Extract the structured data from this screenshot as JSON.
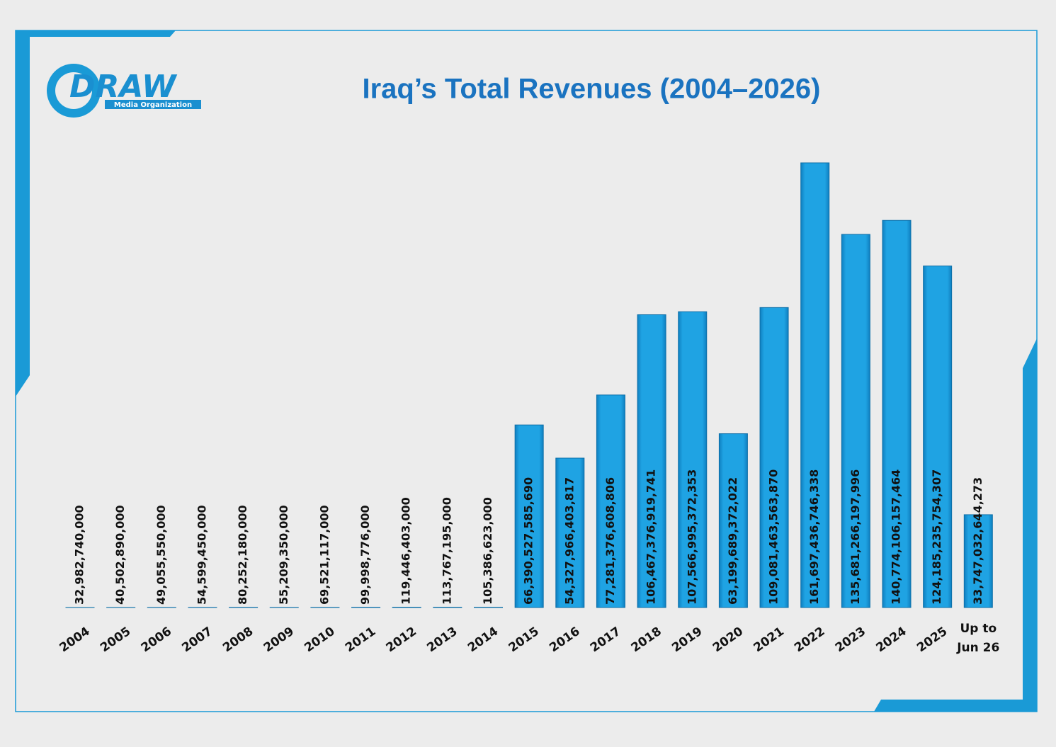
{
  "logo": {
    "name": "DRAW",
    "tagline": "Media Organization"
  },
  "chart_data": {
    "type": "bar",
    "title": "Iraq’s Total Revenues (2004–2026)",
    "categories": [
      "2004",
      "2005",
      "2006",
      "2007",
      "2008",
      "2009",
      "2010",
      "2011",
      "2012",
      "2013",
      "2014",
      "2015",
      "2016",
      "2017",
      "2018",
      "2019",
      "2020",
      "2021",
      "2022",
      "2023",
      "2024",
      "2025",
      "Up to Jun 26"
    ],
    "values": [
      32982740000,
      40502890000,
      49055550000,
      54599450000,
      80252180000,
      55209350000,
      69521117000,
      99998776000,
      119446403000,
      113767195000,
      105386623000,
      66390527585690,
      54327966403817,
      77281376608806,
      106467376919741,
      107566995372353,
      63199689372022,
      109081463563870,
      161697436746338,
      135681266197996,
      140774106157464,
      124185235754307,
      33747032644273
    ],
    "value_labels": [
      "32,982,740,000",
      "40,502,890,000",
      "49,055,550,000",
      "54,599,450,000",
      "80,252,180,000",
      "55,209,350,000",
      "69,521,117,000",
      "99,998,776,000",
      "119,446,403,000",
      "113,767,195,000",
      "105,386,623,000",
      "66,390,527,585,690",
      "54,327,966,403,817",
      "77,281,376,608,806",
      "106,467,376,919,741",
      "107,566,995,372,353",
      "63,199,689,372,022",
      "109,081,463,563,870",
      "161,697,436,746,338",
      "135,681,266,197,996",
      "140,774,106,157,464",
      "124,185,235,754,307",
      "33,747,032,644,273"
    ],
    "color": "#1fa3e3"
  }
}
